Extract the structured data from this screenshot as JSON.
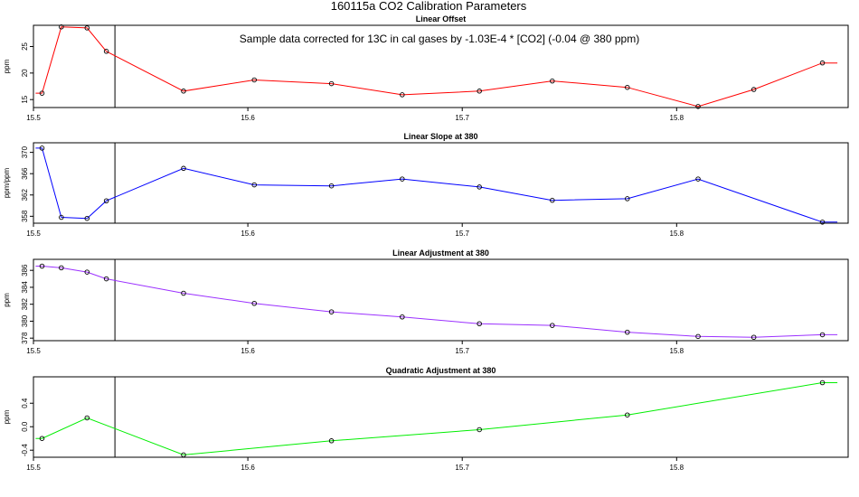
{
  "figure": {
    "title": "160115a   CO2 Calibration Parameters",
    "annotation": "Sample data corrected for 13C in cal gases by -1.03E-4 * [CO2] (-0.04 @ 380 ppm)",
    "marker_x": 15.538
  },
  "chart_data": [
    {
      "type": "line",
      "title": "Linear Offset",
      "ylabel": "ppm",
      "color": "#ff0000",
      "xlim": [
        15.5,
        15.88
      ],
      "ylim": [
        13.5,
        29
      ],
      "xticks": [
        15.5,
        15.6,
        15.7,
        15.8
      ],
      "xtick_labels": [
        "15.5",
        "15.6",
        "15.7",
        "15.8"
      ],
      "yticks": [
        15,
        20,
        25
      ],
      "ytick_labels": [
        "15",
        "20",
        "25"
      ],
      "x": [
        15.504,
        15.513,
        15.525,
        15.534,
        15.57,
        15.603,
        15.639,
        15.672,
        15.708,
        15.742,
        15.777,
        15.81,
        15.836,
        15.868
      ],
      "y": [
        16.2,
        28.7,
        28.5,
        24.1,
        16.6,
        18.7,
        18.0,
        15.9,
        16.6,
        18.5,
        17.3,
        13.7,
        16.9,
        21.9
      ],
      "line_x_start": 15.501,
      "line_y_start": 16.2,
      "line_x_end": 15.875,
      "line_y_end": 21.9
    },
    {
      "type": "line",
      "title": "Linear Slope at 380",
      "ylabel": "ppm/ppm",
      "color": "#0000ff",
      "xlim": [
        15.5,
        15.88
      ],
      "ylim": [
        356.7,
        371.8
      ],
      "xticks": [
        15.5,
        15.6,
        15.7,
        15.8
      ],
      "xtick_labels": [
        "15.5",
        "15.6",
        "15.7",
        "15.8"
      ],
      "yticks": [
        358,
        362,
        366,
        370
      ],
      "ytick_labels": [
        "358",
        "362",
        "366",
        "370"
      ],
      "x": [
        15.504,
        15.513,
        15.525,
        15.534,
        15.57,
        15.603,
        15.639,
        15.672,
        15.708,
        15.742,
        15.777,
        15.81,
        15.868
      ],
      "y": [
        370.8,
        357.8,
        357.6,
        360.9,
        367.0,
        363.9,
        363.7,
        365.0,
        363.5,
        361.0,
        361.3,
        365.0,
        356.9
      ],
      "line_x_start": 15.501,
      "line_y_start": 370.8,
      "line_x_end": 15.875,
      "line_y_end": 356.9
    },
    {
      "type": "line",
      "title": "Linear Adjustment at 380",
      "ylabel": "ppm",
      "color": "#9b30ff",
      "xlim": [
        15.5,
        15.88
      ],
      "ylim": [
        377.7,
        387.3
      ],
      "xticks": [
        15.5,
        15.6,
        15.7,
        15.8
      ],
      "xtick_labels": [
        "15.5",
        "15.6",
        "15.7",
        "15.8"
      ],
      "yticks": [
        378,
        380,
        382,
        384,
        386
      ],
      "ytick_labels": [
        "378",
        "380",
        "382",
        "384",
        "386"
      ],
      "x": [
        15.504,
        15.513,
        15.525,
        15.534,
        15.57,
        15.603,
        15.639,
        15.672,
        15.708,
        15.742,
        15.777,
        15.81,
        15.836,
        15.868
      ],
      "y": [
        386.5,
        386.3,
        385.8,
        385.0,
        383.3,
        382.1,
        381.1,
        380.5,
        379.7,
        379.5,
        378.7,
        378.2,
        378.1,
        378.4
      ],
      "line_x_start": 15.501,
      "line_y_start": 386.5,
      "line_x_end": 15.875,
      "line_y_end": 378.4
    },
    {
      "type": "line",
      "title": "Quadratic Adjustment at 380",
      "ylabel": "ppm",
      "color": "#00ee00",
      "xlim": [
        15.5,
        15.88
      ],
      "ylim": [
        -0.52,
        0.85
      ],
      "xticks": [
        15.5,
        15.6,
        15.7,
        15.8
      ],
      "xtick_labels": [
        "15.5",
        "15.6",
        "15.7",
        "15.8"
      ],
      "yticks": [
        -0.4,
        0.0,
        0.4
      ],
      "ytick_labels": [
        "-0.4",
        "0.0",
        "0.4"
      ],
      "x": [
        15.504,
        15.525,
        15.57,
        15.639,
        15.708,
        15.777,
        15.868
      ],
      "y": [
        -0.2,
        0.15,
        -0.48,
        -0.24,
        -0.05,
        0.2,
        0.75
      ],
      "line_x_start": 15.501,
      "line_y_start": -0.2,
      "line_x_end": 15.875,
      "line_y_end": 0.75
    }
  ]
}
